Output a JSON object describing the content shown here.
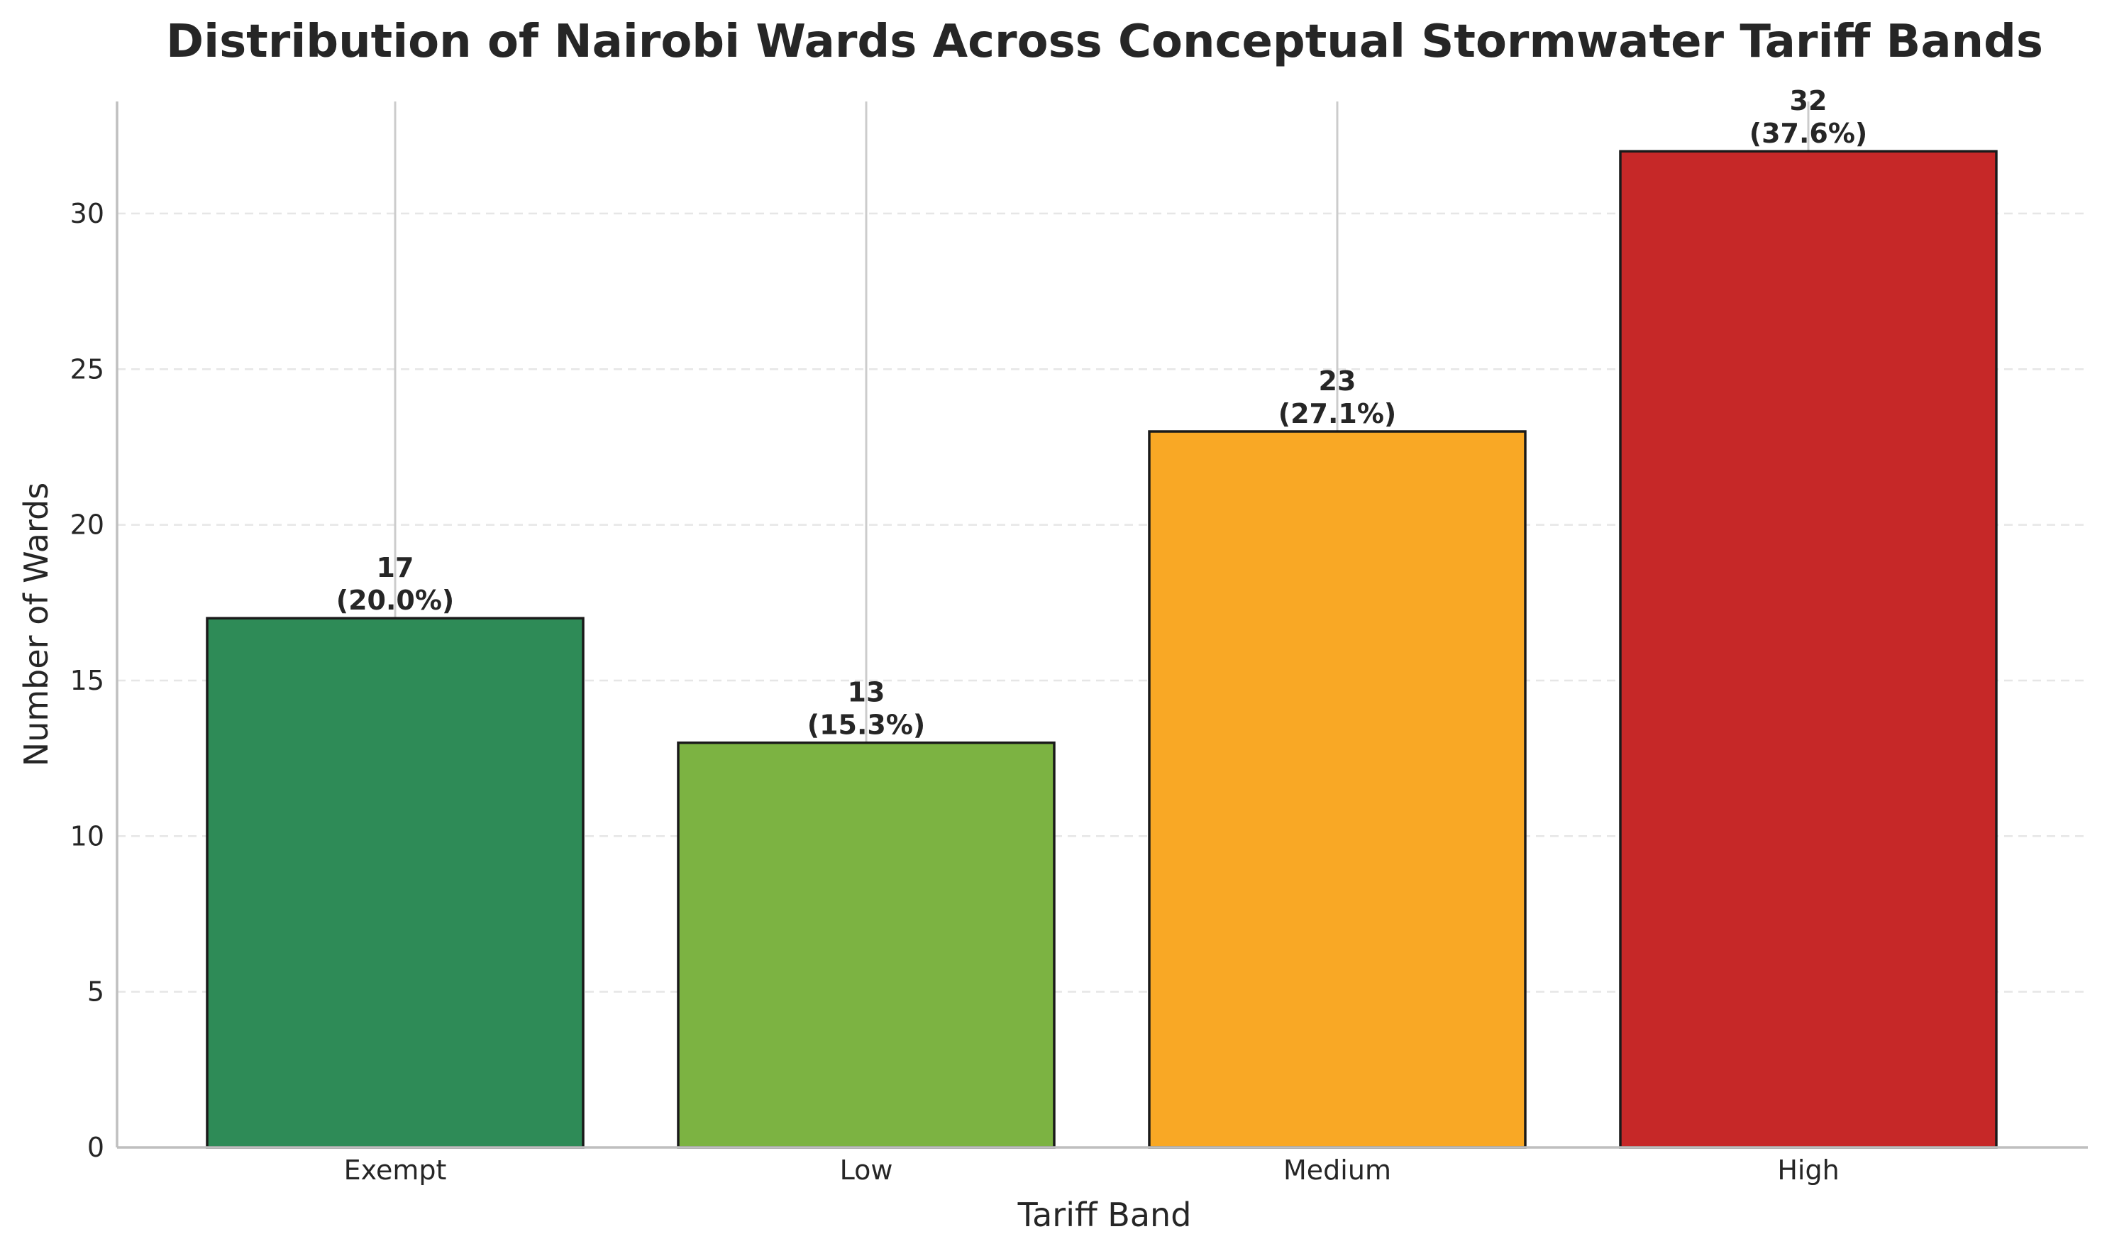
{
  "chart_data": {
    "type": "bar",
    "title": "Distribution of Nairobi Wards Across Conceptual Stormwater Tariff Bands",
    "xlabel": "Tariff Band",
    "ylabel": "Number of Wards",
    "categories": [
      "Exempt",
      "Low",
      "Medium",
      "High"
    ],
    "values": [
      17,
      13,
      23,
      32
    ],
    "value_labels": [
      "17",
      "13",
      "23",
      "32"
    ],
    "percent_labels": [
      "(20.0%)",
      "(15.3%)",
      "(27.1%)",
      "(37.6%)"
    ],
    "colors": [
      "#2e8b57",
      "#7cb342",
      "#f9a825",
      "#c62828"
    ],
    "ylim": [
      0,
      33.6
    ],
    "yticks": [
      0,
      5,
      10,
      15,
      20,
      25,
      30
    ],
    "ytick_labels": [
      "0",
      "5",
      "10",
      "15",
      "20",
      "25",
      "30"
    ],
    "grid": true,
    "legend": "none"
  }
}
